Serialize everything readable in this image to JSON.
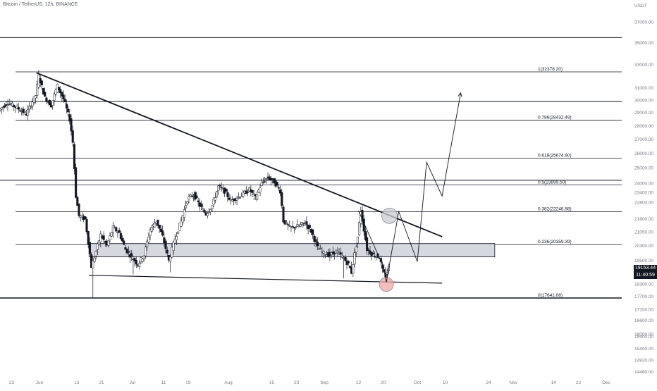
{
  "header": {
    "title": "Bitcoin / TetherUS, 12h, BINANCE"
  },
  "axis": {
    "currency": "USDT"
  },
  "price_display": {
    "price": "19153.44",
    "countdown": "11:40:59"
  },
  "colors": {
    "candle_fill_up": "#ffffff",
    "candle_fill_down": "#131722",
    "candle_outline": "#131722",
    "zone_fill": "#d1d4dc",
    "fib_line": "#131722",
    "circle_red": "#f2a8a8",
    "circle_grey": "#c9cbd0",
    "axis_text": "#787b86"
  },
  "chart_data": {
    "type": "candlestick",
    "title": "Bitcoin / TetherUS, 12h, BINANCE",
    "exchange": "BINANCE",
    "interval": "12h",
    "y_scale": "log",
    "ylim": [
      14200,
      38500
    ],
    "y_ticks": [
      37000,
      35000,
      33000,
      31000,
      30000,
      29000,
      28000,
      27000,
      26000,
      25000,
      24000,
      23400,
      22800,
      21800,
      21050,
      20300,
      19500,
      18900,
      18300,
      17700,
      17100,
      16600,
      16000,
      15900,
      15400,
      14920,
      14460
    ],
    "y_tick_labels": [
      "37000.00",
      "35000.00",
      "33000.00",
      "31000.00",
      "30000.00",
      "29000.00",
      "28000.00",
      "27000.00",
      "26000.00",
      "25000.00",
      "24000.00",
      "23400.00",
      "22800.00",
      "21800.00",
      "21050.00",
      "20300.00",
      "19500.00",
      "18900.00",
      "18300.00",
      "17700.00",
      "17100.00",
      "16600.00",
      "16000.00",
      "15900.00",
      "15400.00",
      "14920.00",
      "14460.00"
    ],
    "x_ticks": [
      "23",
      "Jun",
      "13",
      "21",
      "Jul",
      "11",
      "19",
      "Aug",
      "15",
      "23",
      "Sep",
      "12",
      "20",
      "Oct",
      "10",
      "24",
      "Nov",
      "14",
      "22",
      "Dec"
    ],
    "x_tick_dates": [
      "2022-05-23",
      "2022-06-01",
      "2022-06-13",
      "2022-06-21",
      "2022-07-01",
      "2022-07-11",
      "2022-07-19",
      "2022-08-01",
      "2022-08-15",
      "2022-08-23",
      "2022-09-01",
      "2022-09-12",
      "2022-09-20",
      "2022-10-01",
      "2022-10-10",
      "2022-10-24",
      "2022-11-01",
      "2022-11-14",
      "2022-11-22",
      "2022-12-01"
    ],
    "price_path": [
      [
        "2022-05-19",
        29200
      ],
      [
        "2022-05-22",
        29800
      ],
      [
        "2022-05-25",
        29400
      ],
      [
        "2022-05-28",
        28900
      ],
      [
        "2022-05-31",
        30400
      ],
      [
        "2022-06-01",
        32000
      ],
      [
        "2022-06-03",
        30200
      ],
      [
        "2022-06-05",
        29600
      ],
      [
        "2022-06-07",
        31200
      ],
      [
        "2022-06-09",
        30100
      ],
      [
        "2022-06-11",
        28500
      ],
      [
        "2022-06-12",
        26800
      ],
      [
        "2022-06-13",
        23200
      ],
      [
        "2022-06-14",
        22000
      ],
      [
        "2022-06-16",
        21800
      ],
      [
        "2022-06-18",
        19200
      ],
      [
        "2022-06-19",
        19700
      ],
      [
        "2022-06-21",
        20900
      ],
      [
        "2022-06-23",
        20300
      ],
      [
        "2022-06-25",
        21300
      ],
      [
        "2022-06-27",
        21000
      ],
      [
        "2022-06-29",
        20100
      ],
      [
        "2022-07-01",
        19700
      ],
      [
        "2022-07-03",
        19300
      ],
      [
        "2022-07-05",
        19800
      ],
      [
        "2022-07-07",
        21200
      ],
      [
        "2022-07-09",
        21700
      ],
      [
        "2022-07-11",
        20800
      ],
      [
        "2022-07-13",
        19500
      ],
      [
        "2022-07-15",
        20700
      ],
      [
        "2022-07-17",
        21700
      ],
      [
        "2022-07-19",
        23000
      ],
      [
        "2022-07-21",
        23300
      ],
      [
        "2022-07-23",
        22600
      ],
      [
        "2022-07-25",
        22100
      ],
      [
        "2022-07-27",
        22600
      ],
      [
        "2022-07-29",
        23800
      ],
      [
        "2022-07-31",
        23500
      ],
      [
        "2022-08-02",
        22900
      ],
      [
        "2022-08-05",
        23200
      ],
      [
        "2022-08-08",
        23600
      ],
      [
        "2022-08-10",
        23100
      ],
      [
        "2022-08-12",
        24000
      ],
      [
        "2022-08-14",
        24400
      ],
      [
        "2022-08-16",
        24100
      ],
      [
        "2022-08-18",
        23500
      ],
      [
        "2022-08-19",
        21700
      ],
      [
        "2022-08-21",
        21300
      ],
      [
        "2022-08-24",
        21400
      ],
      [
        "2022-08-26",
        21600
      ],
      [
        "2022-08-28",
        21100
      ],
      [
        "2022-08-30",
        20200
      ],
      [
        "2022-09-01",
        19900
      ],
      [
        "2022-09-03",
        19800
      ],
      [
        "2022-09-05",
        20000
      ],
      [
        "2022-09-07",
        19700
      ],
      [
        "2022-09-09",
        19300
      ],
      [
        "2022-09-10",
        18900
      ],
      [
        "2022-09-12",
        20800
      ],
      [
        "2022-09-13",
        22300
      ],
      [
        "2022-09-14",
        21200
      ],
      [
        "2022-09-15",
        20100
      ],
      [
        "2022-09-17",
        19800
      ],
      [
        "2022-09-19",
        19700
      ],
      [
        "2022-09-20",
        19000
      ],
      [
        "2022-09-21",
        18700
      ],
      [
        "2022-09-22",
        19153
      ]
    ],
    "lows": [
      [
        "2022-06-18",
        17641
      ],
      [
        "2022-07-01",
        18800
      ],
      [
        "2022-07-13",
        18900
      ],
      [
        "2022-09-07",
        18600
      ],
      [
        "2022-09-21",
        18400
      ]
    ],
    "fibonacci": {
      "levels": [
        {
          "ratio": "0",
          "price": 17641.08,
          "label": "0(17641.08)"
        },
        {
          "ratio": "0.236",
          "price": 20359.39,
          "label": "0.236(20359.39)"
        },
        {
          "ratio": "0.382",
          "price": 22246.88,
          "label": "0.382(22246.88)"
        },
        {
          "ratio": "0.5",
          "price": 23899.5,
          "label": "0.5(23899.50)"
        },
        {
          "ratio": "0.618",
          "price": 25674.9,
          "label": "0.618(25674.90)"
        },
        {
          "ratio": "0.786",
          "price": 28432.49,
          "label": "0.786(28432.49)"
        },
        {
          "ratio": "1",
          "price": 32378.2,
          "label": "1(32378.20)"
        }
      ]
    },
    "horizontal_levels": [
      35500,
      29900,
      24200
    ],
    "support_zone": {
      "from": "2022-06-17",
      "to": "2022-10-26",
      "top": 20420,
      "bottom": 19700
    },
    "trendlines": [
      {
        "name": "resistance",
        "points": [
          [
            "2022-05-31",
            32300
          ],
          [
            "2022-10-09",
            20800
          ]
        ]
      },
      {
        "name": "support",
        "points": [
          [
            "2022-06-17",
            18750
          ],
          [
            "2022-10-09",
            18360
          ]
        ]
      }
    ],
    "projection_path": [
      [
        "2022-09-12",
        22300
      ],
      [
        "2022-09-20",
        19200
      ],
      [
        "2022-09-21",
        18400
      ],
      [
        "2022-09-25",
        22250
      ],
      [
        "2022-10-01",
        19450
      ],
      [
        "2022-10-04",
        25400
      ],
      [
        "2022-10-09",
        23200
      ],
      [
        "2022-10-15",
        30600
      ]
    ],
    "circles": [
      {
        "date": "2022-09-21",
        "price": 18300,
        "color": "red"
      },
      {
        "date": "2022-09-22",
        "price": 22000,
        "color": "grey"
      }
    ]
  }
}
